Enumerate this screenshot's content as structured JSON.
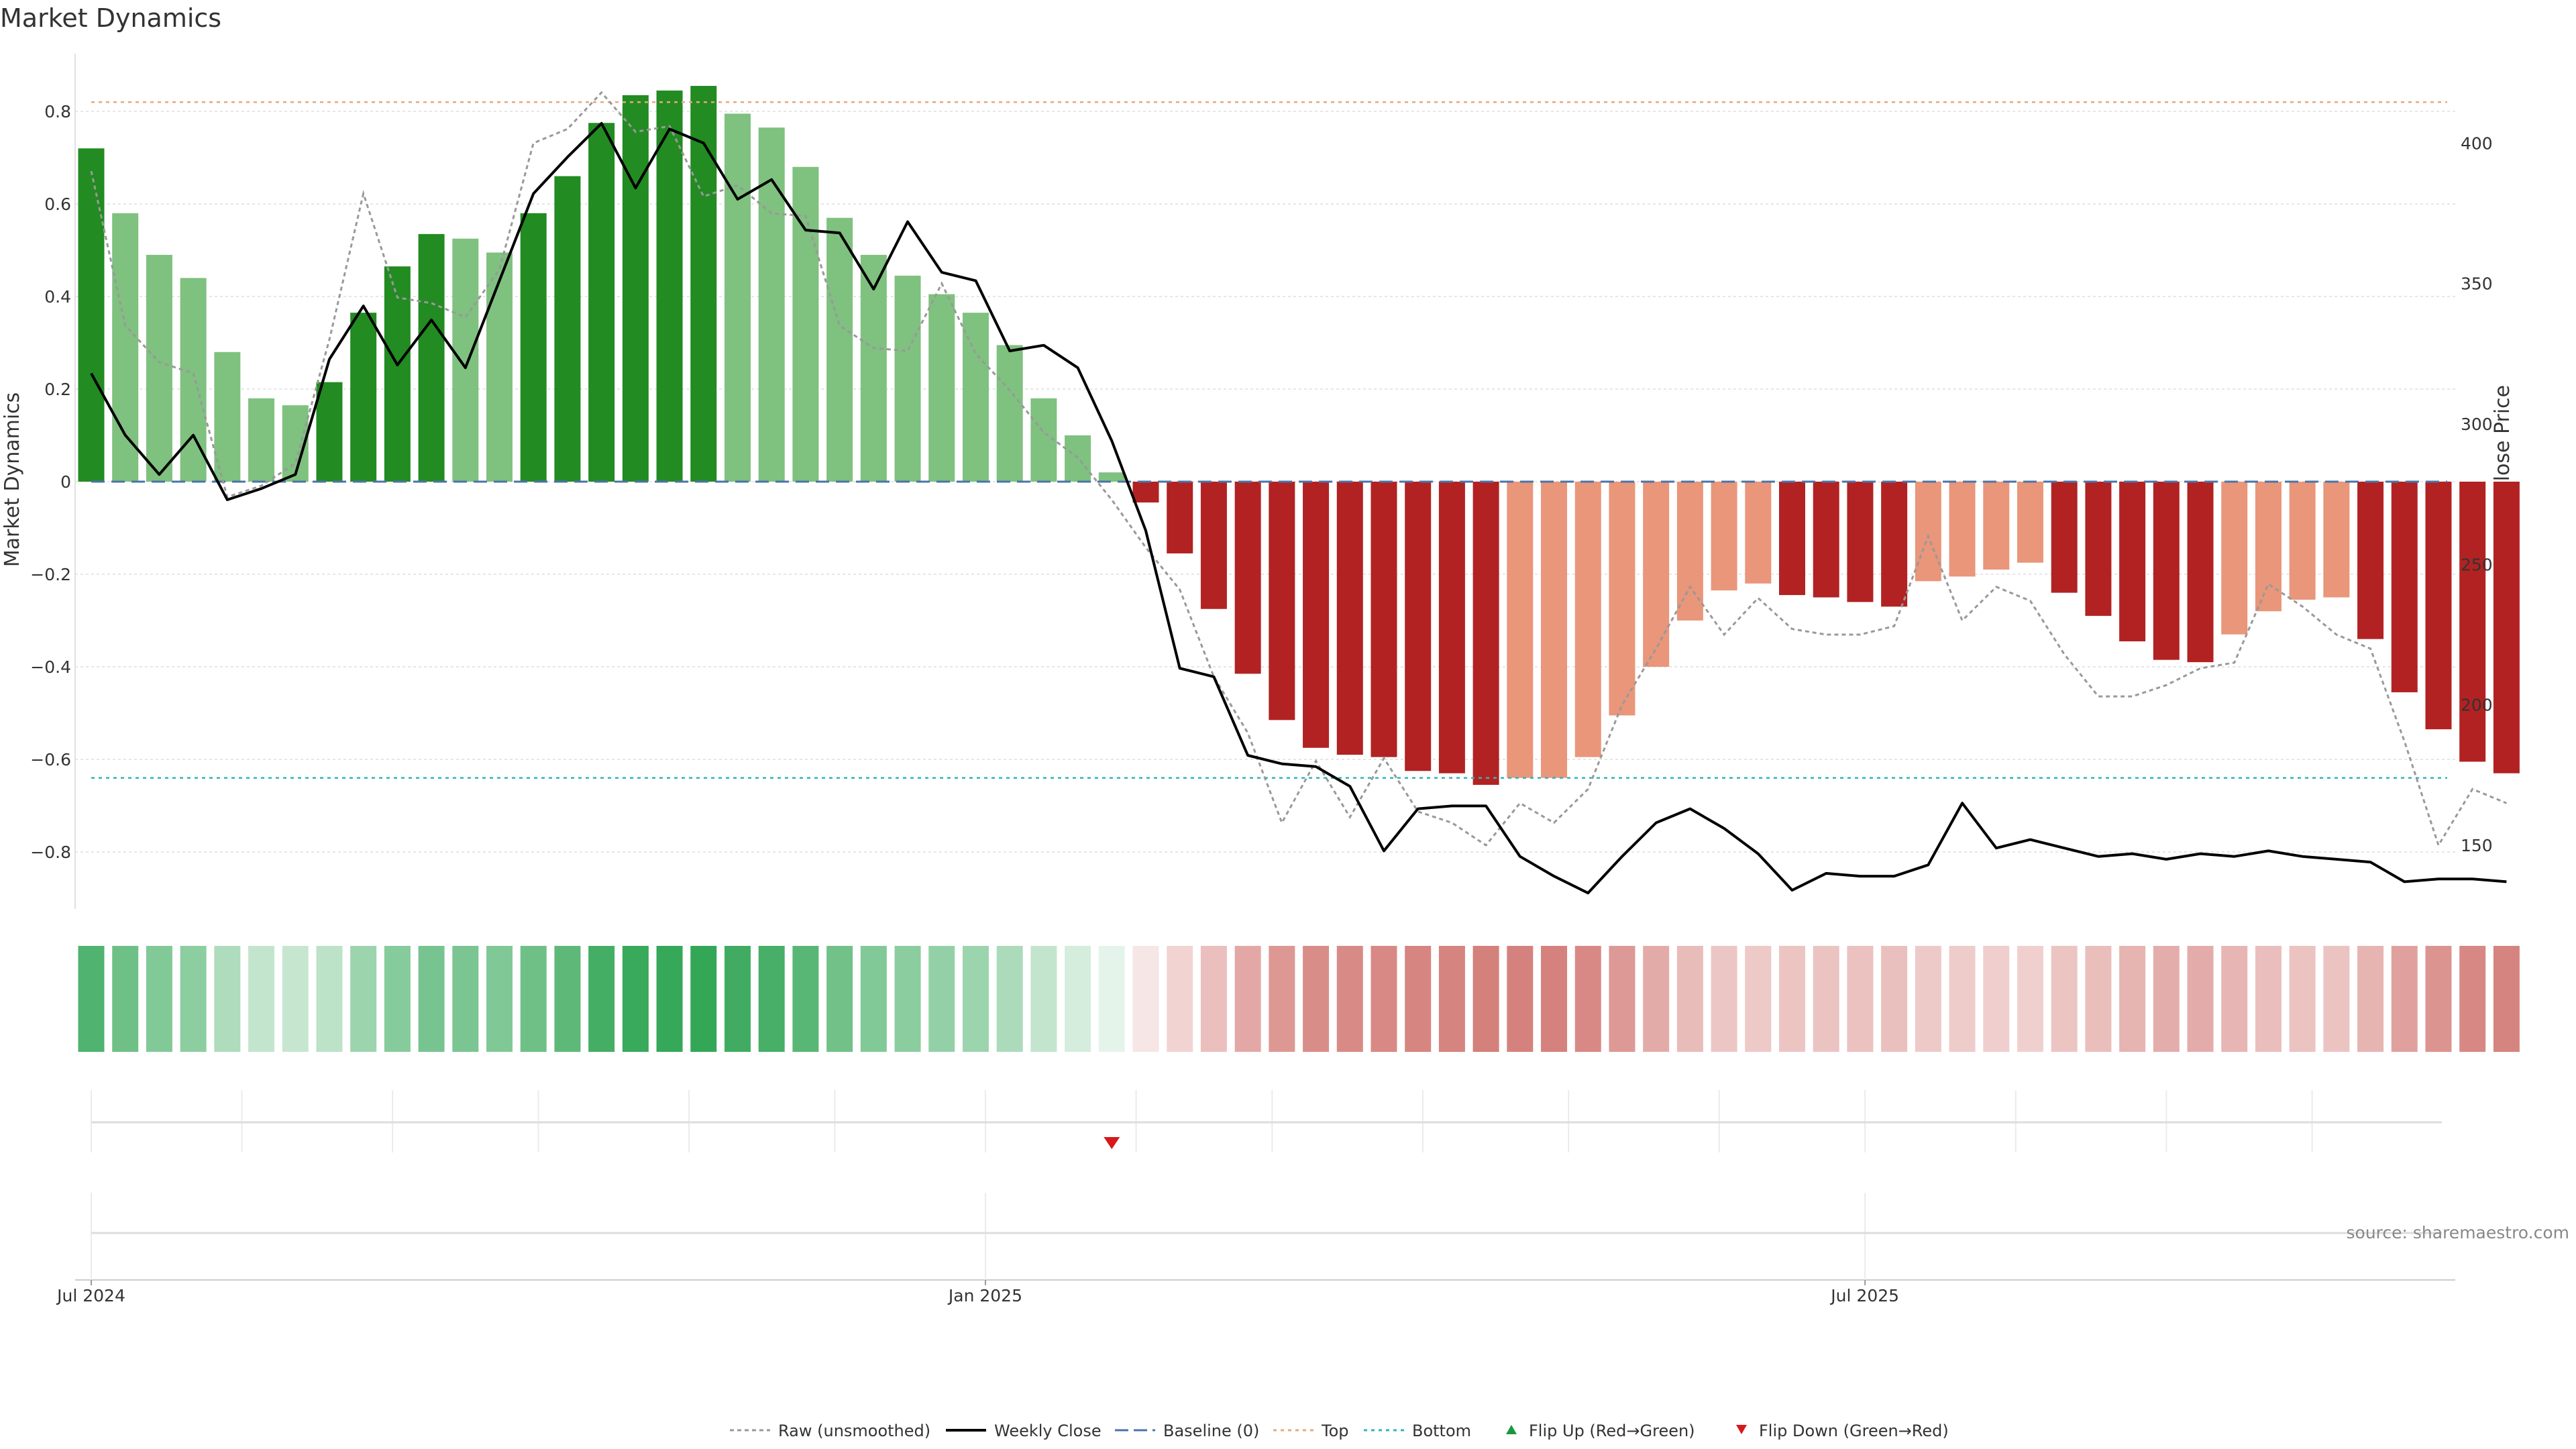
{
  "chart_data": {
    "type": "bar",
    "title": "Market Dynamics",
    "ylabel": "Market Dynamics",
    "y2label": "Weekly Close Price",
    "ylim": [
      -0.93,
      0.92
    ],
    "y2lim": [
      123.2,
      421.1
    ],
    "y_ticks": [
      0.8,
      0.6,
      0.4,
      0.2,
      0,
      -0.2,
      -0.4,
      -0.6,
      -0.8
    ],
    "y_tick_labels": [
      "0.8",
      "0.6",
      "0.4",
      "0.2",
      "0",
      "−0.2",
      "−0.4",
      "−0.6",
      "−0.8"
    ],
    "y2_ticks": [
      400,
      350,
      300,
      250,
      200,
      150
    ],
    "y2_tick_labels": [
      "400",
      "350",
      "300",
      "250",
      "200",
      "150"
    ],
    "x_start": "2024-07-01",
    "x_end": "2025-10-27",
    "x_ticks": [
      {
        "date": "2024-07-01",
        "label": "Jul 2024"
      },
      {
        "date": "2025-01-01",
        "label": "Jan 2025"
      },
      {
        "date": "2025-07-01",
        "label": "Jul 2025"
      }
    ],
    "x_minor_gridlines": [
      "2024-08-01",
      "2024-09-01",
      "2024-10-01",
      "2024-11-01",
      "2024-12-01",
      "2025-02-01",
      "2025-03-01",
      "2025-04-01",
      "2025-05-01",
      "2025-06-01",
      "2025-08-01",
      "2025-09-01",
      "2025-10-01"
    ],
    "top_level": 0.82,
    "bottom_level": -0.64,
    "grid": true,
    "legend_position": "bottom-center",
    "colors": {
      "strong_up": "#228b22",
      "weak_up": "#7fc17f",
      "strong_down": "#b22222",
      "weak_down": "#e9967a",
      "raw": "#999999",
      "close": "#000000",
      "baseline": "#4a74a8",
      "top": "#e8a87c",
      "bottom": "#33b5b5",
      "flip_up": "#1a9641",
      "flip_down": "#d7191c"
    },
    "series": [
      {
        "name": "Market Dynamics",
        "dates": [
          "2024-07-01",
          "2024-07-08",
          "2024-07-15",
          "2024-07-22",
          "2024-07-29",
          "2024-08-05",
          "2024-08-12",
          "2024-08-19",
          "2024-08-26",
          "2024-09-02",
          "2024-09-09",
          "2024-09-16",
          "2024-09-23",
          "2024-09-30",
          "2024-10-07",
          "2024-10-14",
          "2024-10-21",
          "2024-10-28",
          "2024-11-04",
          "2024-11-11",
          "2024-11-18",
          "2024-11-25",
          "2024-12-02",
          "2024-12-09",
          "2024-12-16",
          "2024-12-23",
          "2024-12-30",
          "2025-01-06",
          "2025-01-13",
          "2025-01-20",
          "2025-01-27",
          "2025-02-03",
          "2025-02-10",
          "2025-02-17",
          "2025-02-24",
          "2025-03-03",
          "2025-03-10",
          "2025-03-17",
          "2025-03-24",
          "2025-03-31",
          "2025-04-07",
          "2025-04-14",
          "2025-04-21",
          "2025-04-28",
          "2025-05-05",
          "2025-05-12",
          "2025-05-19",
          "2025-05-26",
          "2025-06-02",
          "2025-06-09",
          "2025-06-16",
          "2025-06-23",
          "2025-06-30",
          "2025-07-07",
          "2025-07-14",
          "2025-07-21",
          "2025-07-28",
          "2025-08-04",
          "2025-08-11",
          "2025-08-18",
          "2025-08-25",
          "2025-09-01",
          "2025-09-08",
          "2025-09-15",
          "2025-09-22",
          "2025-09-29",
          "2025-10-06",
          "2025-10-13",
          "2025-10-20",
          "2025-10-27",
          "2025-11-03",
          "2025-11-10"
        ],
        "values": [
          0.72,
          0.58,
          0.49,
          0.44,
          0.28,
          0.18,
          0.165,
          0.215,
          0.365,
          0.465,
          0.535,
          0.525,
          0.495,
          0.58,
          0.66,
          0.775,
          0.835,
          0.845,
          0.855,
          0.795,
          0.765,
          0.68,
          0.57,
          0.49,
          0.445,
          0.405,
          0.365,
          0.295,
          0.18,
          0.1,
          0.02,
          -0.045,
          -0.155,
          -0.275,
          -0.415,
          -0.515,
          -0.575,
          -0.59,
          -0.595,
          -0.625,
          -0.63,
          -0.655,
          -0.64,
          -0.64,
          -0.595,
          -0.505,
          -0.4,
          -0.3,
          -0.235,
          -0.22,
          -0.245,
          -0.25,
          -0.26,
          -0.27,
          -0.215,
          -0.205,
          -0.19,
          -0.175,
          -0.24,
          -0.29,
          -0.345,
          -0.385,
          -0.39,
          -0.33,
          -0.28,
          -0.255,
          -0.25,
          -0.34,
          -0.455,
          -0.535,
          -0.605,
          -0.63
        ],
        "strength": [
          "strong",
          "weak",
          "weak",
          "weak",
          "weak",
          "weak",
          "weak",
          "strong",
          "strong",
          "strong",
          "strong",
          "weak",
          "weak",
          "strong",
          "strong",
          "strong",
          "strong",
          "strong",
          "strong",
          "weak",
          "weak",
          "weak",
          "weak",
          "weak",
          "weak",
          "weak",
          "weak",
          "weak",
          "weak",
          "weak",
          "weak",
          "strong",
          "strong",
          "strong",
          "strong",
          "strong",
          "strong",
          "strong",
          "strong",
          "strong",
          "strong",
          "strong",
          "weak",
          "weak",
          "weak",
          "weak",
          "weak",
          "weak",
          "weak",
          "weak",
          "strong",
          "strong",
          "strong",
          "strong",
          "weak",
          "weak",
          "weak",
          "weak",
          "strong",
          "strong",
          "strong",
          "strong",
          "strong",
          "weak",
          "weak",
          "weak",
          "weak",
          "strong",
          "strong",
          "strong",
          "strong",
          "strong"
        ]
      },
      {
        "name": "Raw (unsmoothed)",
        "axis": "right",
        "values": [
          390,
          335,
          322,
          318,
          274,
          278,
          286,
          330,
          382,
          345,
          343,
          338,
          355,
          400,
          405,
          418,
          404,
          406,
          381,
          385,
          375,
          374,
          335,
          327,
          326,
          350,
          325,
          312,
          297,
          288,
          273,
          256,
          241,
          210,
          190,
          158,
          180,
          160,
          181,
          162,
          158,
          150,
          165,
          158,
          170,
          200,
          220,
          242,
          225,
          238,
          227,
          225,
          225,
          228,
          260,
          230,
          242,
          237,
          218,
          203,
          203,
          207,
          213,
          215,
          243,
          235,
          225,
          220,
          187,
          150,
          170,
          165
        ],
        "style": "dotted"
      },
      {
        "name": "Weekly Close",
        "axis": "right",
        "values": [
          318,
          296,
          282,
          296,
          273,
          277,
          282,
          323,
          342,
          321,
          337,
          320,
          351,
          382,
          395,
          407,
          384,
          405,
          400,
          380,
          387,
          369,
          368,
          348,
          372,
          354,
          351,
          326,
          328,
          320,
          294,
          262,
          213,
          210,
          182,
          179,
          178,
          171,
          148,
          163,
          164,
          164,
          146,
          139,
          133,
          146,
          158,
          163,
          156,
          147,
          134,
          140,
          139,
          139,
          143,
          165,
          149,
          152,
          149,
          146,
          147,
          145,
          147,
          146,
          148,
          146,
          145,
          144,
          137,
          138,
          138,
          137
        ],
        "style": "solid"
      }
    ],
    "heat_strip": [
      0.72,
      0.58,
      0.49,
      0.44,
      0.28,
      0.18,
      0.165,
      0.215,
      0.365,
      0.465,
      0.535,
      0.525,
      0.495,
      0.58,
      0.66,
      0.775,
      0.835,
      0.845,
      0.855,
      0.795,
      0.765,
      0.68,
      0.57,
      0.49,
      0.445,
      0.405,
      0.365,
      0.295,
      0.18,
      0.1,
      0.02,
      -0.045,
      -0.155,
      -0.275,
      -0.415,
      -0.515,
      -0.575,
      -0.59,
      -0.595,
      -0.625,
      -0.63,
      -0.655,
      -0.64,
      -0.64,
      -0.595,
      -0.505,
      -0.4,
      -0.3,
      -0.235,
      -0.22,
      -0.245,
      -0.25,
      -0.26,
      -0.27,
      -0.215,
      -0.205,
      -0.19,
      -0.175,
      -0.24,
      -0.29,
      -0.345,
      -0.385,
      -0.39,
      -0.33,
      -0.28,
      -0.255,
      -0.25,
      -0.34,
      -0.455,
      -0.535,
      -0.605,
      -0.63
    ],
    "flips": [
      {
        "date": "2025-01-27",
        "type": "down"
      }
    ],
    "legend": [
      {
        "key": "raw",
        "label": "Raw (unsmoothed)"
      },
      {
        "key": "close",
        "label": "Weekly Close"
      },
      {
        "key": "baseline",
        "label": "Baseline (0)"
      },
      {
        "key": "top",
        "label": "Top"
      },
      {
        "key": "bottom",
        "label": "Bottom"
      },
      {
        "key": "flip_up",
        "label": "Flip Up (Red→Green)"
      },
      {
        "key": "flip_down",
        "label": "Flip Down (Green→Red)"
      }
    ],
    "source": "source: sharemaestro.com"
  }
}
